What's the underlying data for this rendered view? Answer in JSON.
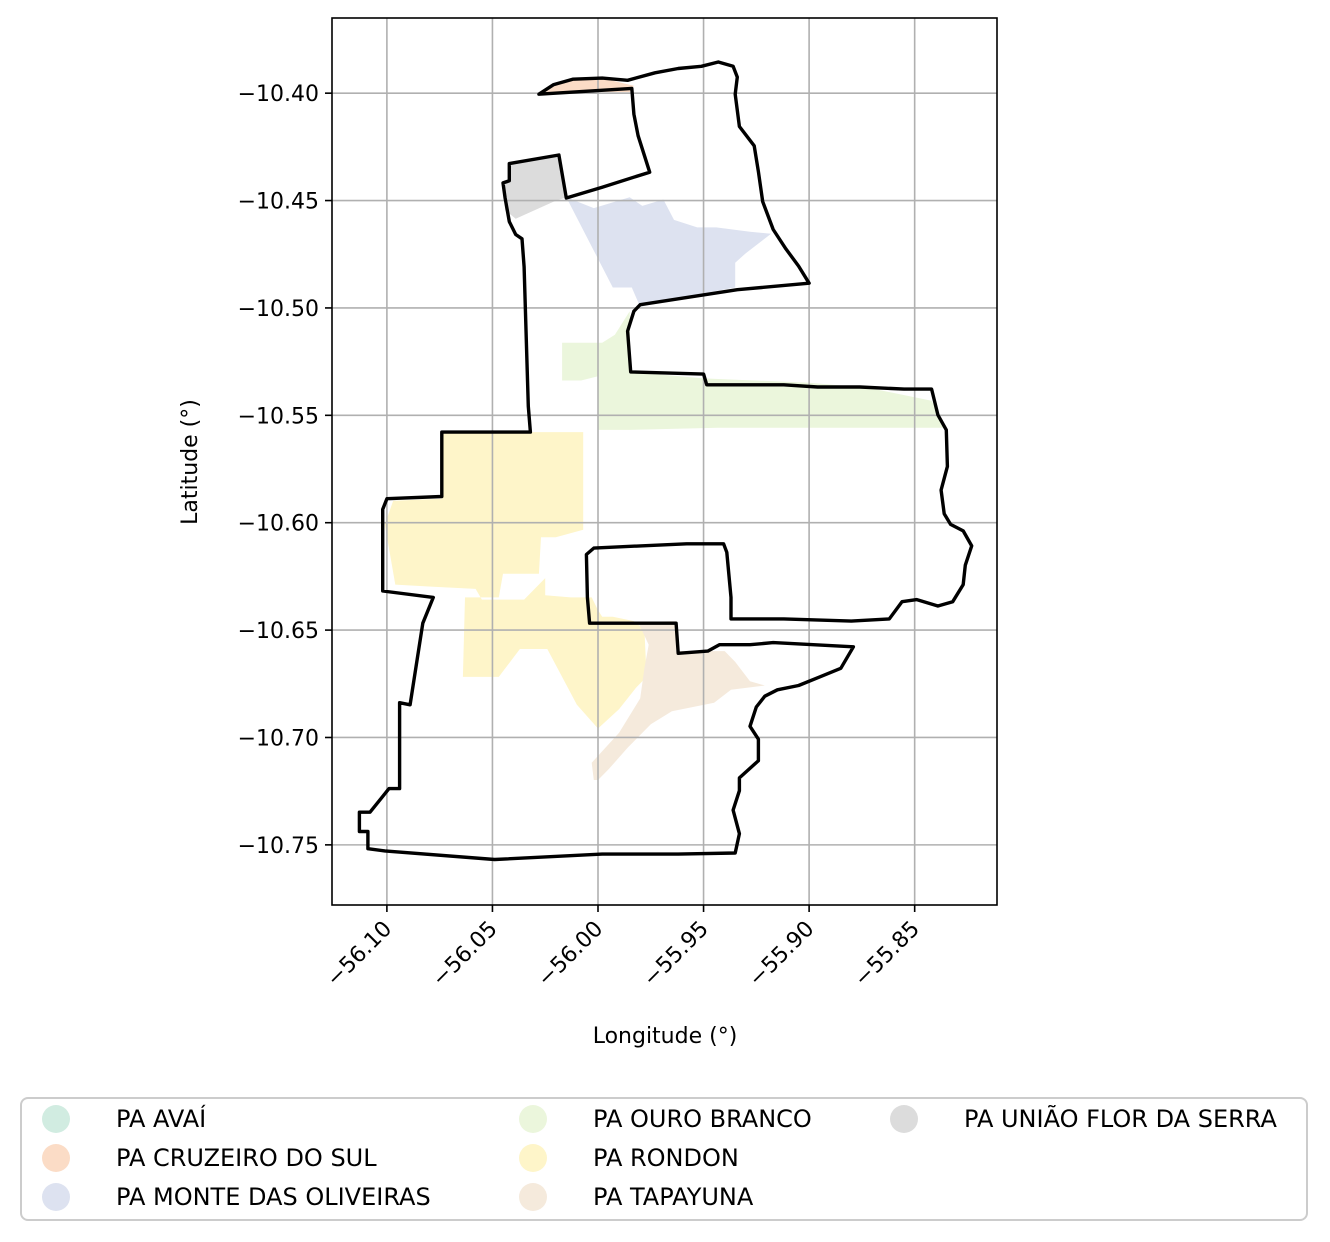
{
  "chart_data": {
    "type": "map",
    "xlabel": "Longitude (°)",
    "ylabel": "Latitude (°)",
    "xlim": [
      -56.126,
      -55.811
    ],
    "ylim": [
      -10.778,
      -10.365
    ],
    "x_ticks": [
      {
        "value": -56.1,
        "label": "−56.10"
      },
      {
        "value": -56.05,
        "label": "−56.05"
      },
      {
        "value": -56.0,
        "label": "−56.00"
      },
      {
        "value": -55.95,
        "label": "−55.95"
      },
      {
        "value": -55.9,
        "label": "−55.90"
      },
      {
        "value": -55.85,
        "label": "−55.85"
      }
    ],
    "y_ticks": [
      {
        "value": -10.4,
        "label": "−10.40"
      },
      {
        "value": -10.45,
        "label": "−10.45"
      },
      {
        "value": -10.5,
        "label": "−10.50"
      },
      {
        "value": -10.55,
        "label": "−10.55"
      },
      {
        "value": -10.6,
        "label": "−10.60"
      },
      {
        "value": -10.65,
        "label": "−10.65"
      },
      {
        "value": -10.7,
        "label": "−10.70"
      },
      {
        "value": -10.75,
        "label": "−10.75"
      }
    ],
    "grid": true,
    "legend_placement": "bottom",
    "legend_columns": 3,
    "categories": [
      {
        "name": "PA AVAÍ",
        "color": "#d1ece1"
      },
      {
        "name": "PA CRUZEIRO DO SUL",
        "color": "#fbdcc6"
      },
      {
        "name": "PA MONTE DAS OLIVEIRAS",
        "color": "#dde2f0"
      },
      {
        "name": "PA OURO BRANCO",
        "color": "#ebf6dc"
      },
      {
        "name": "PA RONDON",
        "color": "#fef5c9"
      },
      {
        "name": "PA TAPAYUNA",
        "color": "#f5eadc"
      },
      {
        "name": "PA UNIÃO FLOR DA SERRA",
        "color": "#dcdcdc"
      }
    ],
    "regions": [
      {
        "category": "PA CRUZEIRO DO SUL",
        "polygon": [
          [
            -56.025,
            -10.3995
          ],
          [
            -56.018,
            -10.395
          ],
          [
            -56.005,
            -10.393
          ],
          [
            -55.994,
            -10.394
          ],
          [
            -55.983,
            -10.3965
          ],
          [
            -55.985,
            -10.3995
          ],
          [
            -56.01,
            -10.3995
          ]
        ]
      },
      {
        "category": "PA UNIÃO FLOR DA SERRA",
        "polygon": [
          [
            -56.042,
            -10.433
          ],
          [
            -56.018,
            -10.4285
          ],
          [
            -56.015,
            -10.4485
          ],
          [
            -56.021,
            -10.4505
          ],
          [
            -56.039,
            -10.4585
          ],
          [
            -56.044,
            -10.4545
          ],
          [
            -56.045,
            -10.442
          ],
          [
            -56.042,
            -10.441
          ]
        ]
      },
      {
        "category": "PA MONTE DAS OLIVEIRAS",
        "polygon": [
          [
            -56.015,
            -10.4485
          ],
          [
            -56.002,
            -10.4535
          ],
          [
            -55.985,
            -10.4485
          ],
          [
            -55.979,
            -10.4525
          ],
          [
            -55.969,
            -10.4495
          ],
          [
            -55.964,
            -10.459
          ],
          [
            -55.953,
            -10.4625
          ],
          [
            -55.944,
            -10.4625
          ],
          [
            -55.928,
            -10.4645
          ],
          [
            -55.918,
            -10.4655
          ],
          [
            -55.93,
            -10.4745
          ],
          [
            -55.935,
            -10.479
          ],
          [
            -55.935,
            -10.4905
          ],
          [
            -55.952,
            -10.4935
          ],
          [
            -55.98,
            -10.4995
          ],
          [
            -55.984,
            -10.4905
          ],
          [
            -55.993,
            -10.4905
          ]
        ]
      },
      {
        "category": "PA OURO BRANCO",
        "polygon": [
          [
            -55.985,
            -10.5015
          ],
          [
            -55.992,
            -10.5125
          ],
          [
            -55.998,
            -10.5162
          ],
          [
            -56.017,
            -10.5162
          ],
          [
            -56.017,
            -10.5338
          ],
          [
            -56.008,
            -10.5338
          ],
          [
            -56.0,
            -10.5318
          ],
          [
            -56.0,
            -10.5568
          ],
          [
            -55.985,
            -10.5568
          ],
          [
            -55.943,
            -10.5558
          ],
          [
            -55.895,
            -10.5558
          ],
          [
            -55.835,
            -10.5558
          ],
          [
            -55.842,
            -10.5432
          ],
          [
            -55.872,
            -10.5372
          ],
          [
            -55.9,
            -10.5348
          ],
          [
            -55.95,
            -10.5328
          ],
          [
            -55.985,
            -10.5298
          ]
        ]
      },
      {
        "category": "PA RONDON",
        "polygon": [
          [
            -56.074,
            -10.5578
          ],
          [
            -56.007,
            -10.5578
          ],
          [
            -56.007,
            -10.6033
          ],
          [
            -56.02,
            -10.6068
          ],
          [
            -56.027,
            -10.6068
          ],
          [
            -56.028,
            -10.6238
          ],
          [
            -56.045,
            -10.6238
          ],
          [
            -56.047,
            -10.6348
          ],
          [
            -56.063,
            -10.6348
          ],
          [
            -56.064,
            -10.6718
          ],
          [
            -56.047,
            -10.6718
          ],
          [
            -56.037,
            -10.6588
          ],
          [
            -56.024,
            -10.6588
          ],
          [
            -56.01,
            -10.6848
          ],
          [
            -56.0,
            -10.6958
          ],
          [
            -55.99,
            -10.6868
          ],
          [
            -55.982,
            -10.6768
          ],
          [
            -55.977,
            -10.6718
          ],
          [
            -55.978,
            -10.6498
          ],
          [
            -55.983,
            -10.6458
          ],
          [
            -55.993,
            -10.6438
          ],
          [
            -55.998,
            -10.6438
          ],
          [
            -56.0,
            -10.6408
          ],
          [
            -56.003,
            -10.6348
          ],
          [
            -56.013,
            -10.6348
          ],
          [
            -56.025,
            -10.6338
          ],
          [
            -56.025,
            -10.6258
          ],
          [
            -56.035,
            -10.6358
          ],
          [
            -56.055,
            -10.6358
          ],
          [
            -56.058,
            -10.6308
          ],
          [
            -56.078,
            -10.6298
          ],
          [
            -56.096,
            -10.6288
          ],
          [
            -56.101,
            -10.6008
          ],
          [
            -56.097,
            -10.5898
          ],
          [
            -56.074,
            -10.5888
          ]
        ]
      },
      {
        "category": "PA TAPAYUNA",
        "polygon": [
          [
            -55.981,
            -10.6463
          ],
          [
            -55.963,
            -10.6458
          ],
          [
            -55.963,
            -10.6598
          ],
          [
            -55.94,
            -10.6598
          ],
          [
            -55.935,
            -10.6648
          ],
          [
            -55.928,
            -10.6738
          ],
          [
            -55.921,
            -10.6758
          ],
          [
            -55.937,
            -10.6778
          ],
          [
            -55.945,
            -10.6838
          ],
          [
            -55.965,
            -10.6878
          ],
          [
            -55.975,
            -10.6938
          ],
          [
            -55.986,
            -10.7048
          ],
          [
            -55.995,
            -10.7148
          ],
          [
            -56.0,
            -10.7198
          ],
          [
            -56.002,
            -10.7198
          ],
          [
            -56.003,
            -10.7118
          ],
          [
            -55.99,
            -10.6978
          ],
          [
            -55.98,
            -10.6818
          ],
          [
            -55.978,
            -10.6678
          ],
          [
            -55.976,
            -10.6568
          ]
        ]
      }
    ],
    "outline": [
      [
        -56.028,
        -10.4005
      ],
      [
        -56.021,
        -10.396
      ],
      [
        -56.012,
        -10.3935
      ],
      [
        -55.998,
        -10.393
      ],
      [
        -55.986,
        -10.394
      ],
      [
        -55.973,
        -10.3905
      ],
      [
        -55.962,
        -10.3885
      ],
      [
        -55.951,
        -10.3875
      ],
      [
        -55.943,
        -10.3855
      ],
      [
        -55.936,
        -10.3875
      ],
      [
        -55.934,
        -10.3925
      ],
      [
        -55.935,
        -10.4005
      ],
      [
        -55.933,
        -10.4155
      ],
      [
        -55.926,
        -10.4245
      ],
      [
        -55.924,
        -10.4365
      ],
      [
        -55.922,
        -10.4505
      ],
      [
        -55.917,
        -10.4635
      ],
      [
        -55.911,
        -10.4725
      ],
      [
        -55.905,
        -10.4805
      ],
      [
        -55.9,
        -10.4885
      ],
      [
        -55.934,
        -10.4915
      ],
      [
        -55.98,
        -10.4985
      ],
      [
        -55.983,
        -10.5015
      ],
      [
        -55.986,
        -10.5108
      ],
      [
        -55.9845,
        -10.5298
      ],
      [
        -55.95,
        -10.5308
      ],
      [
        -55.9485,
        -10.5358
      ],
      [
        -55.912,
        -10.5358
      ],
      [
        -55.896,
        -10.5368
      ],
      [
        -55.876,
        -10.5368
      ],
      [
        -55.855,
        -10.5378
      ],
      [
        -55.842,
        -10.5378
      ],
      [
        -55.839,
        -10.5498
      ],
      [
        -55.835,
        -10.5568
      ],
      [
        -55.8345,
        -10.5738
      ],
      [
        -55.8375,
        -10.5848
      ],
      [
        -55.836,
        -10.5958
      ],
      [
        -55.833,
        -10.6008
      ],
      [
        -55.827,
        -10.6038
      ],
      [
        -55.823,
        -10.6108
      ],
      [
        -55.826,
        -10.6198
      ],
      [
        -55.827,
        -10.6288
      ],
      [
        -55.832,
        -10.6368
      ],
      [
        -55.839,
        -10.6388
      ],
      [
        -55.849,
        -10.6358
      ],
      [
        -55.856,
        -10.6368
      ],
      [
        -55.862,
        -10.6448
      ],
      [
        -55.88,
        -10.6458
      ],
      [
        -55.912,
        -10.6448
      ],
      [
        -55.937,
        -10.6448
      ],
      [
        -55.937,
        -10.6348
      ],
      [
        -55.939,
        -10.6138
      ],
      [
        -55.9405,
        -10.6098
      ],
      [
        -55.958,
        -10.6098
      ],
      [
        -55.98,
        -10.6108
      ],
      [
        -56.002,
        -10.6118
      ],
      [
        -56.0055,
        -10.6148
      ],
      [
        -56.005,
        -10.6348
      ],
      [
        -56.004,
        -10.6468
      ],
      [
        -55.963,
        -10.6468
      ],
      [
        -55.962,
        -10.6608
      ],
      [
        -55.948,
        -10.6598
      ],
      [
        -55.9425,
        -10.6568
      ],
      [
        -55.928,
        -10.6568
      ],
      [
        -55.917,
        -10.6558
      ],
      [
        -55.879,
        -10.6578
      ],
      [
        -55.885,
        -10.6678
      ],
      [
        -55.895,
        -10.6718
      ],
      [
        -55.905,
        -10.6758
      ],
      [
        -55.915,
        -10.6778
      ],
      [
        -55.921,
        -10.6808
      ],
      [
        -55.925,
        -10.6858
      ],
      [
        -55.928,
        -10.6948
      ],
      [
        -55.924,
        -10.7008
      ],
      [
        -55.924,
        -10.7108
      ],
      [
        -55.933,
        -10.7188
      ],
      [
        -55.933,
        -10.7248
      ],
      [
        -55.936,
        -10.7338
      ],
      [
        -55.933,
        -10.7448
      ],
      [
        -55.935,
        -10.7538
      ],
      [
        -55.962,
        -10.7543
      ],
      [
        -55.998,
        -10.7543
      ],
      [
        -56.049,
        -10.7568
      ],
      [
        -56.101,
        -10.7528
      ],
      [
        -56.109,
        -10.7518
      ],
      [
        -56.109,
        -10.7438
      ],
      [
        -56.113,
        -10.7438
      ],
      [
        -56.113,
        -10.7348
      ],
      [
        -56.108,
        -10.7348
      ],
      [
        -56.099,
        -10.7238
      ],
      [
        -56.094,
        -10.7238
      ],
      [
        -56.094,
        -10.6838
      ],
      [
        -56.089,
        -10.6848
      ],
      [
        -56.083,
        -10.6468
      ],
      [
        -56.078,
        -10.6348
      ],
      [
        -56.102,
        -10.6318
      ],
      [
        -56.102,
        -10.5938
      ],
      [
        -56.1,
        -10.5888
      ],
      [
        -56.074,
        -10.5878
      ],
      [
        -56.074,
        -10.5578
      ],
      [
        -56.032,
        -10.5578
      ],
      [
        -56.033,
        -10.5458
      ],
      [
        -56.035,
        -10.4808
      ],
      [
        -56.036,
        -10.4678
      ],
      [
        -56.039,
        -10.4658
      ],
      [
        -56.042,
        -10.4598
      ],
      [
        -56.044,
        -10.4488
      ],
      [
        -56.045,
        -10.4418
      ],
      [
        -56.042,
        -10.4408
      ],
      [
        -56.042,
        -10.4328
      ],
      [
        -56.0185,
        -10.4288
      ],
      [
        -56.015,
        -10.4488
      ],
      [
        -55.998,
        -10.4438
      ],
      [
        -55.9755,
        -10.4368
      ],
      [
        -55.981,
        -10.4198
      ],
      [
        -55.983,
        -10.4098
      ],
      [
        -55.984,
        -10.3978
      ],
      [
        -56.028,
        -10.4005
      ]
    ]
  },
  "legend": {
    "items": [
      {
        "label": "PA AVAÍ",
        "color": "#d1ece1"
      },
      {
        "label": "PA CRUZEIRO DO SUL",
        "color": "#fbdcc6"
      },
      {
        "label": "PA MONTE DAS OLIVEIRAS",
        "color": "#dde2f0"
      },
      {
        "label": "PA OURO BRANCO",
        "color": "#ebf6dc"
      },
      {
        "label": "PA RONDON",
        "color": "#fef5c9"
      },
      {
        "label": "PA TAPAYUNA",
        "color": "#f5eadc"
      },
      {
        "label": "PA UNIÃO FLOR DA SERRA",
        "color": "#dcdcdc"
      }
    ]
  }
}
